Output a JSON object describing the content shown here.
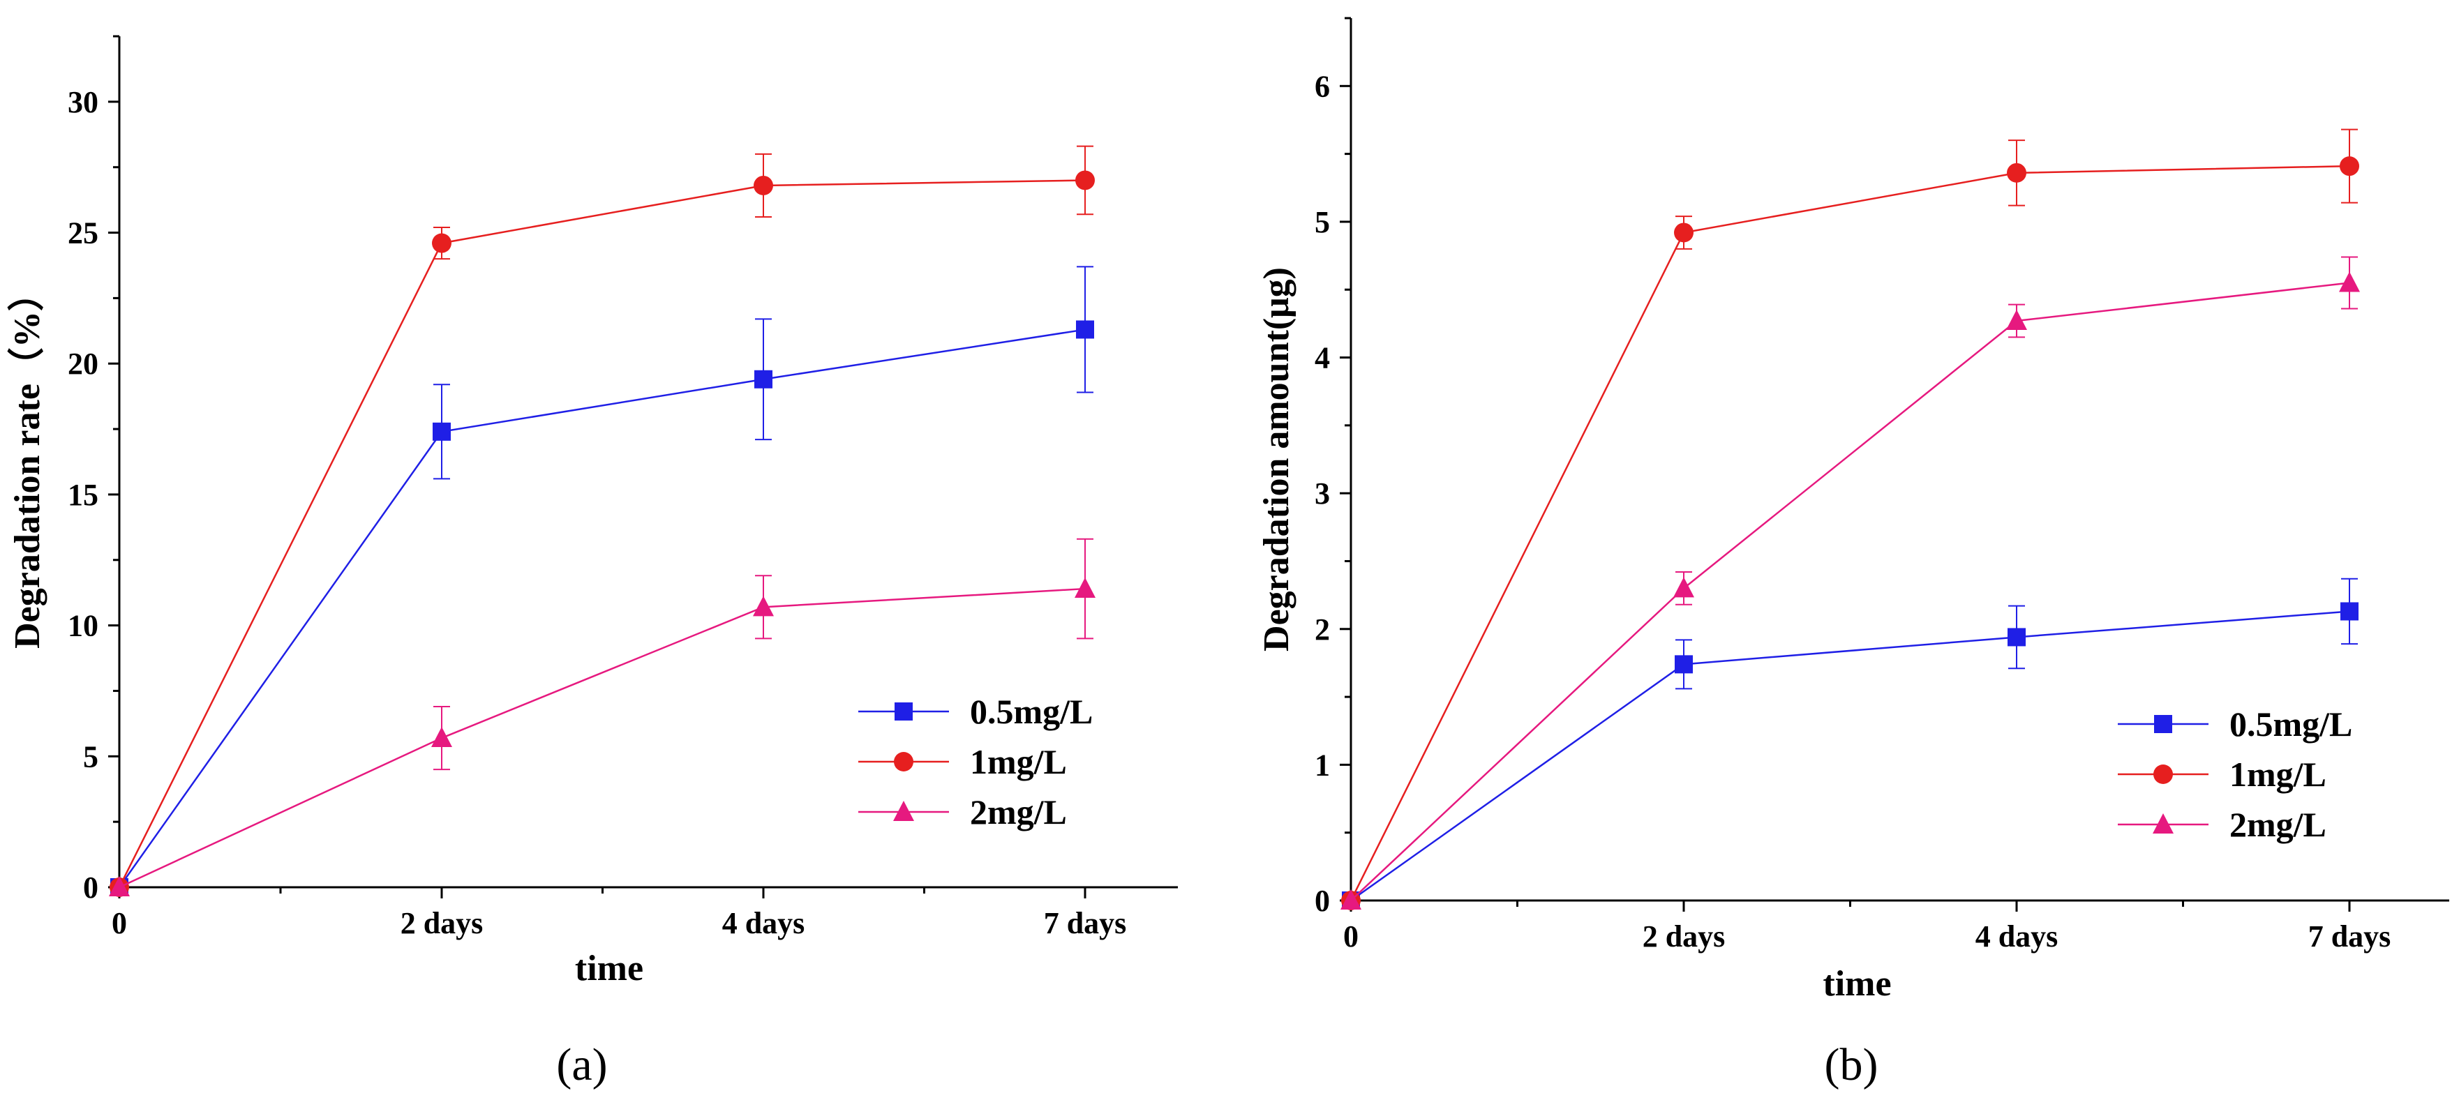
{
  "chart_data": [
    {
      "type": "line",
      "panel_label": "(a)",
      "categories": [
        "0",
        "2 days",
        "4 days",
        "7 days"
      ],
      "xlabel": "time",
      "ylabel": "Degradation rate（%）",
      "ylim": [
        0,
        32.5
      ],
      "yticks": [
        "0",
        "5",
        "10",
        "15",
        "20",
        "25",
        "30"
      ],
      "legend_position": "lower-right",
      "series": [
        {
          "name": "0.5mg/L",
          "color": "#1f1fe6",
          "marker": "square",
          "values": [
            0,
            17.4,
            19.4,
            21.3
          ],
          "errors": [
            0,
            1.8,
            2.3,
            2.4
          ]
        },
        {
          "name": "1mg/L",
          "color": "#e61f1f",
          "marker": "circle",
          "values": [
            0,
            24.6,
            26.8,
            27.0
          ],
          "errors": [
            0,
            0.6,
            1.2,
            1.3
          ]
        },
        {
          "name": "2mg/L",
          "color": "#e6197f",
          "marker": "triangle",
          "values": [
            0,
            5.7,
            10.7,
            11.4
          ],
          "errors": [
            0,
            1.2,
            1.2,
            1.9
          ]
        }
      ]
    },
    {
      "type": "line",
      "panel_label": "(b)",
      "categories": [
        "0",
        "2 days",
        "4 days",
        "7 days"
      ],
      "xlabel": "time",
      "ylabel": "Degradation amount(μg)",
      "ylim": [
        0,
        6.5
      ],
      "yticks": [
        "0",
        "1",
        "2",
        "3",
        "4",
        "5",
        "6"
      ],
      "legend_position": "lower-right",
      "series": [
        {
          "name": "0.5mg/L",
          "color": "#1f1fe6",
          "marker": "square",
          "values": [
            0,
            1.74,
            1.94,
            2.13
          ],
          "errors": [
            0,
            0.18,
            0.23,
            0.24
          ]
        },
        {
          "name": "1mg/L",
          "color": "#e61f1f",
          "marker": "circle",
          "values": [
            0,
            4.92,
            5.36,
            5.41
          ],
          "errors": [
            0,
            0.12,
            0.24,
            0.27
          ]
        },
        {
          "name": "2mg/L",
          "color": "#e6197f",
          "marker": "triangle",
          "values": [
            0,
            2.3,
            4.27,
            4.55
          ],
          "errors": [
            0,
            0.12,
            0.12,
            0.19
          ]
        }
      ]
    }
  ]
}
